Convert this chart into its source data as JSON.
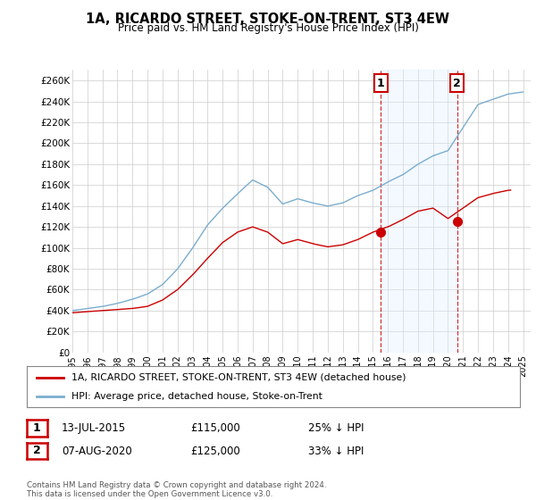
{
  "title": "1A, RICARDO STREET, STOKE-ON-TRENT, ST3 4EW",
  "subtitle": "Price paid vs. HM Land Registry's House Price Index (HPI)",
  "ylabel_ticks": [
    "£0",
    "£20K",
    "£40K",
    "£60K",
    "£80K",
    "£100K",
    "£120K",
    "£140K",
    "£160K",
    "£180K",
    "£200K",
    "£220K",
    "£240K",
    "£260K"
  ],
  "ytick_values": [
    0,
    20000,
    40000,
    60000,
    80000,
    100000,
    120000,
    140000,
    160000,
    180000,
    200000,
    220000,
    240000,
    260000
  ],
  "ylim": [
    0,
    270000
  ],
  "xlim_start": 1995.0,
  "xlim_end": 2025.5,
  "legend_line1": "1A, RICARDO STREET, STOKE-ON-TRENT, ST3 4EW (detached house)",
  "legend_line2": "HPI: Average price, detached house, Stoke-on-Trent",
  "annotation1_label": "1",
  "annotation1_date": "13-JUL-2015",
  "annotation1_price": "£115,000",
  "annotation1_hpi": "25% ↓ HPI",
  "annotation2_label": "2",
  "annotation2_date": "07-AUG-2020",
  "annotation2_price": "£125,000",
  "annotation2_hpi": "33% ↓ HPI",
  "footer1": "Contains HM Land Registry data © Crown copyright and database right 2024.",
  "footer2": "This data is licensed under the Open Government Licence v3.0.",
  "red_color": "#cc0000",
  "blue_color": "#7aadcf",
  "vline_color": "#cc0000",
  "grid_color": "#cccccc",
  "background_color": "#ffffff",
  "shade_color": "#ddeeff",
  "vline1_x": 2015.53,
  "vline2_x": 2020.6,
  "marker1_x": 2015.53,
  "marker1_y": 115000,
  "marker2_x": 2020.6,
  "marker2_y": 125000,
  "xtick_years": [
    1995,
    1996,
    1997,
    1998,
    1999,
    2000,
    2001,
    2002,
    2003,
    2004,
    2005,
    2006,
    2007,
    2008,
    2009,
    2010,
    2011,
    2012,
    2013,
    2014,
    2015,
    2016,
    2017,
    2018,
    2019,
    2020,
    2021,
    2022,
    2023,
    2024,
    2025
  ]
}
